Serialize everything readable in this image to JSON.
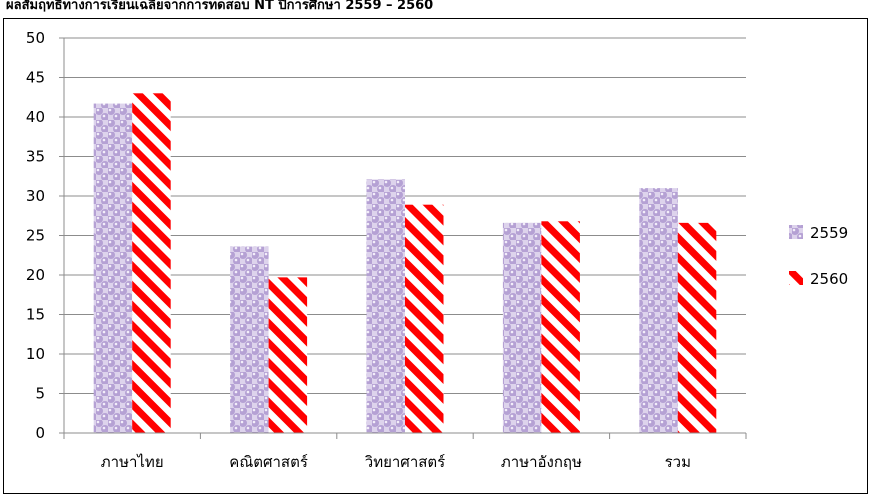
{
  "chart_data": {
    "type": "bar",
    "title": "ผลสัมฤทธิ์ทางการเรียนเฉลี่ยจากการทดสอบ NT ปีการศึกษา 2559 – 2560",
    "xlabel": "",
    "ylabel": "",
    "categories": [
      "ภาษาไทย",
      "คณิตศาสตร์",
      "วิทยาศาสตร์",
      "ภาษาอังกฤษ",
      "รวม"
    ],
    "series": [
      {
        "name": "2559",
        "values": [
          41.7,
          23.6,
          32.1,
          26.6,
          31.0
        ],
        "color": "#b9a6d6",
        "pattern": "dots"
      },
      {
        "name": "2560",
        "values": [
          43.0,
          19.7,
          28.9,
          26.8,
          26.6
        ],
        "color": "#ff0000",
        "pattern": "diagonal-stripes"
      }
    ],
    "ylim": [
      0,
      50
    ],
    "yticks": [
      0,
      5,
      10,
      15,
      20,
      25,
      30,
      35,
      40,
      45,
      50
    ],
    "grid": true,
    "legend_position": "right"
  }
}
